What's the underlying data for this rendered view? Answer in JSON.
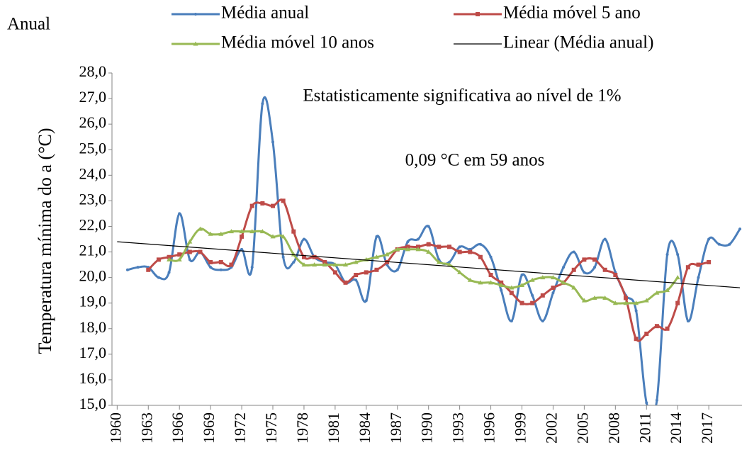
{
  "chart_data": {
    "type": "line",
    "title": "Anual",
    "ylabel": "Temperatura mínima do a (°C)",
    "annotations": [
      "Estatisticamente significativa ao nível de 1%",
      "0,09 °C em 59 anos"
    ],
    "xlim": [
      1959.5,
      2020.2
    ],
    "xticks": [
      1960,
      1963,
      1966,
      1969,
      1972,
      1975,
      1978,
      1981,
      1984,
      1987,
      1990,
      1993,
      1996,
      1999,
      2002,
      2005,
      2008,
      2011,
      2014,
      2017
    ],
    "ylim": [
      15,
      28
    ],
    "yticks": [
      {
        "value": 15,
        "label": "15,0"
      },
      {
        "value": 16,
        "label": "16,0"
      },
      {
        "value": 17,
        "label": "17,0"
      },
      {
        "value": 18,
        "label": "18,0"
      },
      {
        "value": 19,
        "label": "19,0"
      },
      {
        "value": 20,
        "label": "20,0"
      },
      {
        "value": 21,
        "label": "21,0"
      },
      {
        "value": 22,
        "label": "22,0"
      },
      {
        "value": 23,
        "label": "23,0"
      },
      {
        "value": 24,
        "label": "24,0"
      },
      {
        "value": 25,
        "label": "25,0"
      },
      {
        "value": 26,
        "label": "26,0"
      },
      {
        "value": 27,
        "label": "27,0"
      },
      {
        "value": 28,
        "label": "28,0"
      }
    ],
    "series": [
      {
        "name": "Média anual",
        "color": "#4a7ebb",
        "marker": "circle",
        "smooth": true,
        "x": [
          1961,
          1962,
          1963,
          1964,
          1965,
          1966,
          1967,
          1968,
          1969,
          1970,
          1971,
          1972,
          1973,
          1974,
          1975,
          1976,
          1977,
          1978,
          1979,
          1980,
          1981,
          1982,
          1983,
          1984,
          1985,
          1986,
          1987,
          1988,
          1989,
          1990,
          1991,
          1992,
          1993,
          1994,
          1995,
          1996,
          1997,
          1998,
          1999,
          2000,
          2001,
          2002,
          2003,
          2004,
          2005,
          2006,
          2007,
          2008,
          2009,
          2010,
          2011,
          2012,
          2013,
          2014,
          2015,
          2016,
          2017,
          2018,
          2019,
          2020
        ],
        "values": [
          20.3,
          20.4,
          20.4,
          20.0,
          20.2,
          22.5,
          20.7,
          21.0,
          20.4,
          20.3,
          20.4,
          21.1,
          20.4,
          26.8,
          25.3,
          20.8,
          20.6,
          21.5,
          20.8,
          20.6,
          20.5,
          19.8,
          19.9,
          19.1,
          21.6,
          20.5,
          20.3,
          21.4,
          21.5,
          22.0,
          20.7,
          20.6,
          21.2,
          21.1,
          21.3,
          20.8,
          19.5,
          18.3,
          20.1,
          19.3,
          18.3,
          19.4,
          20.4,
          21.0,
          20.2,
          20.4,
          21.5,
          20.2,
          19.3,
          18.7,
          15.1,
          15.2,
          20.9,
          20.9,
          18.3,
          20.0,
          21.5,
          21.3,
          21.3,
          21.9
        ]
      },
      {
        "name": "Média móvel 5 ano",
        "color": "#be4b48",
        "marker": "square",
        "smooth": true,
        "x": [
          1963,
          1964,
          1965,
          1966,
          1967,
          1968,
          1969,
          1970,
          1971,
          1972,
          1973,
          1974,
          1975,
          1976,
          1977,
          1978,
          1979,
          1980,
          1981,
          1982,
          1983,
          1984,
          1985,
          1986,
          1987,
          1988,
          1989,
          1990,
          1991,
          1992,
          1993,
          1994,
          1995,
          1996,
          1997,
          1998,
          1999,
          2000,
          2001,
          2002,
          2003,
          2004,
          2005,
          2006,
          2007,
          2008,
          2009,
          2010,
          2011,
          2012,
          2013,
          2014,
          2015,
          2016,
          2017
        ],
        "values": [
          20.3,
          20.7,
          20.8,
          20.9,
          21.0,
          21.0,
          20.6,
          20.6,
          20.5,
          21.6,
          22.8,
          22.9,
          22.8,
          23.0,
          21.8,
          20.8,
          20.8,
          20.6,
          20.2,
          19.8,
          20.1,
          20.2,
          20.3,
          20.6,
          21.1,
          21.2,
          21.2,
          21.3,
          21.2,
          21.2,
          21.0,
          21.0,
          20.8,
          20.1,
          19.8,
          19.4,
          19.0,
          19.0,
          19.3,
          19.6,
          19.8,
          20.3,
          20.7,
          20.7,
          20.3,
          20.1,
          19.2,
          17.6,
          17.8,
          18.1,
          18.0,
          19.0,
          20.4,
          20.5,
          20.6
        ]
      },
      {
        "name": "Média móvel 10 anos",
        "color": "#98b954",
        "marker": "triangle",
        "smooth": true,
        "x": [
          1965,
          1966,
          1967,
          1968,
          1969,
          1970,
          1971,
          1972,
          1973,
          1974,
          1975,
          1976,
          1977,
          1978,
          1979,
          1980,
          1981,
          1982,
          1983,
          1984,
          1985,
          1986,
          1987,
          1988,
          1989,
          1990,
          1991,
          1992,
          1993,
          1994,
          1995,
          1996,
          1997,
          1998,
          1999,
          2000,
          2001,
          2002,
          2003,
          2004,
          2005,
          2006,
          2007,
          2008,
          2009,
          2010,
          2011,
          2012,
          2013,
          2014
        ],
        "values": [
          20.7,
          20.7,
          21.4,
          21.9,
          21.7,
          21.7,
          21.8,
          21.8,
          21.8,
          21.8,
          21.6,
          21.6,
          20.9,
          20.5,
          20.5,
          20.5,
          20.5,
          20.5,
          20.6,
          20.7,
          20.8,
          20.9,
          21.1,
          21.1,
          21.1,
          21.0,
          20.6,
          20.5,
          20.2,
          19.9,
          19.8,
          19.8,
          19.7,
          19.6,
          19.7,
          19.9,
          20.0,
          20.0,
          19.8,
          19.6,
          19.1,
          19.2,
          19.2,
          19.0,
          19.0,
          19.0,
          19.1,
          19.4,
          19.5,
          20.0
        ]
      },
      {
        "name": "Linear (Média anual)",
        "color": "#000000",
        "marker": "none",
        "smooth": false,
        "x": [
          1960,
          2020
        ],
        "values": [
          21.4,
          19.6
        ]
      }
    ]
  }
}
